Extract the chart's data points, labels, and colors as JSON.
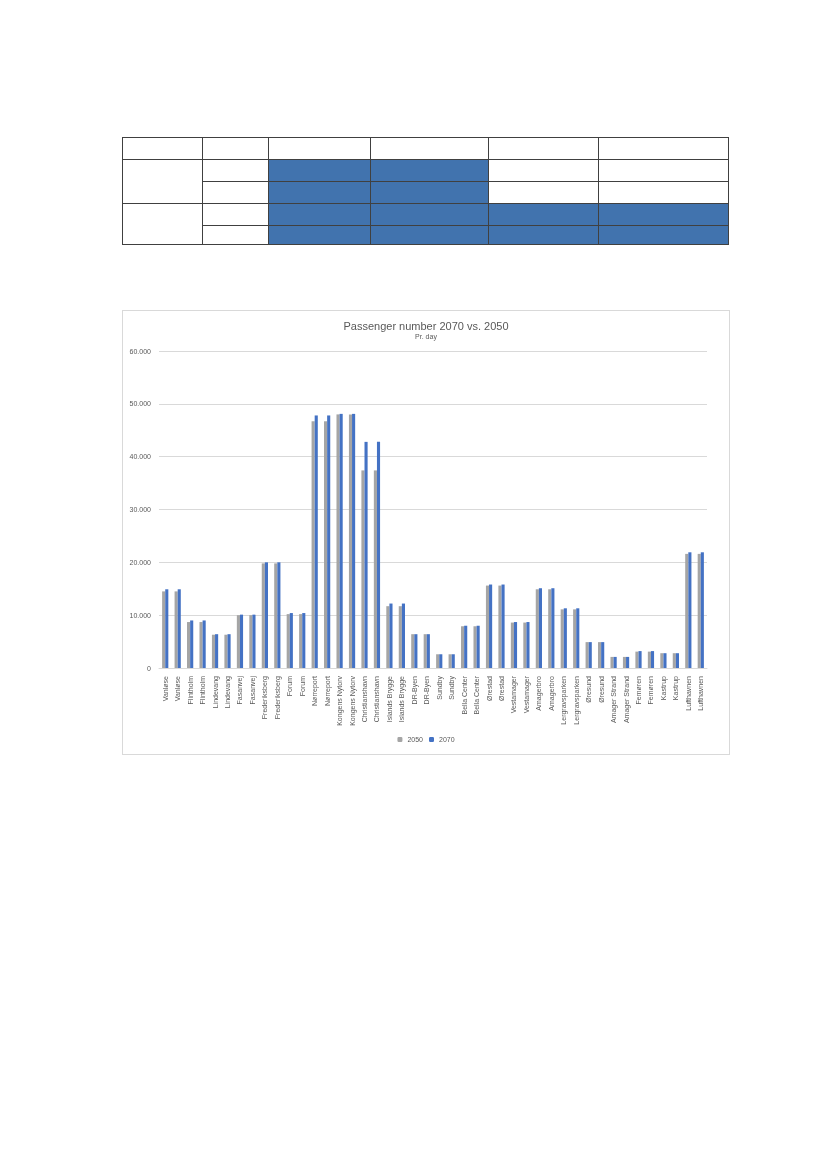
{
  "chart_data": {
    "type": "bar",
    "title": "Passenger number 2070 vs. 2050",
    "subtitle": "Pr. day",
    "categories": [
      "Vanløse",
      "Vanløse",
      "Flintholm",
      "Flintholm",
      "Lindevang",
      "Lindevang",
      "Fasanvej",
      "Fasanvej",
      "Frederiksberg",
      "Frederiksberg",
      "Forum",
      "Forum",
      "Nørreport",
      "Nørreport",
      "Kongens Nytorv",
      "Kongens Nytorv",
      "Christianshavn",
      "Christianshavn",
      "Islands Brygge",
      "Islands Brygge",
      "DR-Byen",
      "DR-Byen",
      "Sundby",
      "Sundby",
      "Bella Center",
      "Bella Center",
      "Ørestad",
      "Ørestad",
      "Vestamager",
      "Vestamager",
      "Amagerbro",
      "Amagerbro",
      "Lergravsparken",
      "Lergravsparken",
      "Øresund",
      "Øresund",
      "Amager Strand",
      "Amager Strand",
      "Femøren",
      "Femøren",
      "Kastrup",
      "Kastrup",
      "Lufthavnen",
      "Lufthavnen"
    ],
    "series": [
      {
        "name": "2050",
        "color": "#a5a5a5",
        "values": [
          14500,
          14500,
          8700,
          8700,
          6300,
          6300,
          10000,
          10000,
          19800,
          19800,
          10200,
          10200,
          46700,
          46700,
          48000,
          48000,
          37400,
          37400,
          11700,
          11700,
          6400,
          6400,
          2600,
          2600,
          7900,
          7900,
          15600,
          15600,
          8600,
          8600,
          14900,
          14900,
          11100,
          11100,
          4900,
          4900,
          2100,
          2100,
          3100,
          3100,
          2800,
          2800,
          21600,
          21600
        ]
      },
      {
        "name": "2070",
        "color": "#4472c4",
        "values": [
          14900,
          14900,
          9000,
          9000,
          6400,
          6400,
          10100,
          10100,
          20000,
          20000,
          10400,
          10400,
          47800,
          47800,
          48100,
          48100,
          42800,
          42800,
          12200,
          12200,
          6400,
          6400,
          2600,
          2600,
          8000,
          8000,
          15800,
          15800,
          8700,
          8700,
          15100,
          15100,
          11300,
          11300,
          4900,
          4900,
          2100,
          2100,
          3200,
          3200,
          2800,
          2800,
          21900,
          21900
        ]
      }
    ],
    "ylim": [
      0,
      60000
    ],
    "yticks": [
      0,
      {
        "value": 10000,
        "label": "10.000"
      },
      {
        "value": 20000,
        "label": "20.000"
      },
      {
        "value": 30000,
        "label": "30.000"
      },
      {
        "value": 40000,
        "label": "40.000"
      },
      {
        "value": 50000,
        "label": "50.000"
      },
      {
        "value": 60000,
        "label": "60.000"
      }
    ],
    "grid": "y",
    "legend": "bottom"
  }
}
